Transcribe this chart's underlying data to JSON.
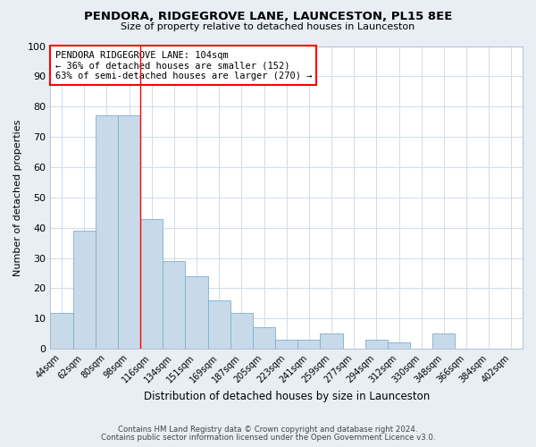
{
  "title": "PENDORA, RIDGEGROVE LANE, LAUNCESTON, PL15 8EE",
  "subtitle": "Size of property relative to detached houses in Launceston",
  "xlabel": "Distribution of detached houses by size in Launceston",
  "ylabel": "Number of detached properties",
  "bar_color": "#c8daea",
  "bar_edge_color": "#7aaed0",
  "categories": [
    "44sqm",
    "62sqm",
    "80sqm",
    "98sqm",
    "116sqm",
    "134sqm",
    "151sqm",
    "169sqm",
    "187sqm",
    "205sqm",
    "223sqm",
    "241sqm",
    "259sqm",
    "277sqm",
    "294sqm",
    "312sqm",
    "330sqm",
    "348sqm",
    "366sqm",
    "384sqm",
    "402sqm"
  ],
  "values": [
    12,
    39,
    77,
    77,
    43,
    29,
    24,
    16,
    12,
    7,
    3,
    3,
    5,
    0,
    3,
    2,
    0,
    5,
    0,
    0,
    0
  ],
  "ylim": [
    0,
    100
  ],
  "yticks": [
    0,
    10,
    20,
    30,
    40,
    50,
    60,
    70,
    80,
    90,
    100
  ],
  "red_line_x": 3.5,
  "annotation_line1": "PENDORA RIDGEGROVE LANE: 104sqm",
  "annotation_line2": "← 36% of detached houses are smaller (152)",
  "annotation_line3": "63% of semi-detached houses are larger (270) →",
  "footer1": "Contains HM Land Registry data © Crown copyright and database right 2024.",
  "footer2": "Contains public sector information licensed under the Open Government Licence v3.0.",
  "fig_bg_color": "#e8eef4",
  "plot_bg_color": "#ffffff",
  "grid_color": "#d0dce8"
}
